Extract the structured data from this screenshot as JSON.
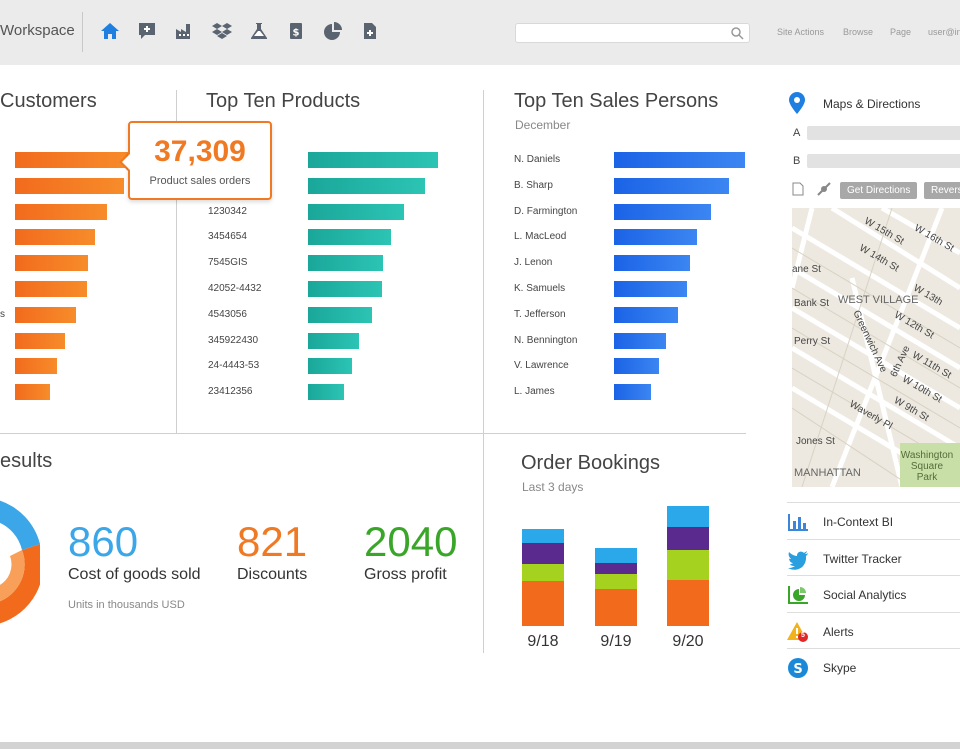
{
  "header": {
    "brand": "Workspace",
    "search_placeholder": "",
    "links": [
      "Site Actions",
      "Browse",
      "Page",
      "user@in"
    ]
  },
  "customers": {
    "title": "Customers",
    "partial_label": "s",
    "values": [
      100,
      92,
      78,
      68,
      62,
      61,
      52,
      42,
      36,
      30
    ]
  },
  "callout": {
    "value": "37,309",
    "label": "Product sales orders"
  },
  "products": {
    "title": "Top Ten Products",
    "labels": [
      "",
      "",
      "1230342",
      "3454654",
      "7545GIS",
      "42052-4432",
      "4543056",
      "345922430",
      "24-4443-53",
      "23412356"
    ],
    "values": [
      100,
      90,
      74,
      64,
      58,
      57,
      49,
      39,
      34,
      28
    ]
  },
  "salespersons": {
    "title": "Top Ten Sales Persons",
    "subtitle": "December",
    "labels": [
      "N. Daniels",
      "B. Sharp",
      "D. Farmington",
      "L. MacLeod",
      "J. Lenon",
      "K. Samuels",
      "T. Jefferson",
      "N. Bennington",
      "V. Lawrence",
      "L. James"
    ],
    "values": [
      100,
      88,
      74,
      63,
      58,
      56,
      49,
      40,
      34,
      28
    ]
  },
  "results": {
    "title": "esults",
    "metrics": [
      {
        "value": "860",
        "label": "Cost of goods sold",
        "color": "#3ba6e8"
      },
      {
        "value": "821",
        "label": "Discounts",
        "color": "#f07a24"
      },
      {
        "value": "2040",
        "label": "Gross profit",
        "color": "#3aa629"
      }
    ],
    "footnote": "Units in thousands USD"
  },
  "bookings": {
    "title": "Order Bookings",
    "subtitle": "Last 3 days",
    "chart_data": {
      "type": "bar",
      "stacked": true,
      "categories": [
        "9/18",
        "9/19",
        "9/20"
      ],
      "series": [
        {
          "color": "#f26b1d",
          "values": [
            45,
            37,
            46
          ]
        },
        {
          "color": "#a5d21f",
          "values": [
            17,
            15,
            30
          ]
        },
        {
          "color": "#5b2a8e",
          "values": [
            21,
            11,
            23
          ]
        },
        {
          "color": "#2aa8ea",
          "values": [
            14,
            15,
            21
          ]
        }
      ]
    }
  },
  "maps": {
    "title": "Maps & Directions",
    "a_label": "A",
    "b_label": "B",
    "buttons": [
      "Get Directions",
      "Revers"
    ],
    "map_labels": [
      "W 15th St",
      "W 16th St",
      "W 14th St",
      "ane St",
      "Bank St",
      "WEST VILLAGE",
      "W 13th",
      "W 12th St",
      "Perry St",
      "Greenwich Ave",
      "6th Ave",
      "W 11th St",
      "W 10th St",
      "W 9th St",
      "Waverly Pl",
      "Jones St",
      "Washington Square Park",
      "MANHATTAN"
    ]
  },
  "apps": [
    {
      "label": "In-Context BI",
      "icon": "bar-chart-icon"
    },
    {
      "label": "Twitter Tracker",
      "icon": "twitter-bird-icon"
    },
    {
      "label": "Social Analytics",
      "icon": "pie-chart-icon"
    },
    {
      "label": "Alerts",
      "icon": "warning-icon",
      "badge": "5"
    },
    {
      "label": "Skype",
      "icon": "skype-icon"
    }
  ]
}
